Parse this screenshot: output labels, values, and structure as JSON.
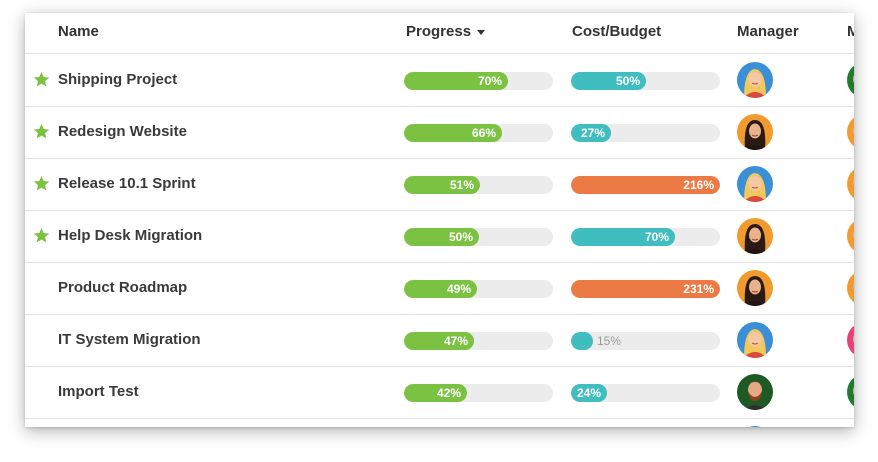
{
  "columns": {
    "name": "Name",
    "progress": "Progress",
    "cost": "Cost/Budget",
    "manager": "Manager",
    "next": "M"
  },
  "colors": {
    "star": "#7cc242",
    "progress": "#7cc242",
    "cost_normal": "#3fbdbf",
    "cost_over": "#ec7a45",
    "track": "#ececec"
  },
  "rows": [
    {
      "starred": true,
      "name": "Shipping Project",
      "progress": 70,
      "progress_label": "70%",
      "cost": 50,
      "cost_label": "50%",
      "cost_status": "normal",
      "manager_avatar": "blonde-woman",
      "next_avatar": "green"
    },
    {
      "starred": true,
      "name": "Redesign Website",
      "progress": 66,
      "progress_label": "66%",
      "cost": 27,
      "cost_label": "27%",
      "cost_status": "normal",
      "manager_avatar": "dark-hair-woman",
      "next_avatar": "orange"
    },
    {
      "starred": true,
      "name": "Release 10.1 Sprint",
      "progress": 51,
      "progress_label": "51%",
      "cost": 216,
      "cost_label": "216%",
      "cost_status": "over",
      "manager_avatar": "blonde-woman",
      "next_avatar": "orange"
    },
    {
      "starred": true,
      "name": "Help Desk Migration",
      "progress": 50,
      "progress_label": "50%",
      "cost": 70,
      "cost_label": "70%",
      "cost_status": "normal",
      "manager_avatar": "dark-hair-woman",
      "next_avatar": "orange"
    },
    {
      "starred": false,
      "name": "Product Roadmap",
      "progress": 49,
      "progress_label": "49%",
      "cost": 231,
      "cost_label": "231%",
      "cost_status": "over",
      "manager_avatar": "dark-hair-woman",
      "next_avatar": "orange"
    },
    {
      "starred": false,
      "name": "IT System Migration",
      "progress": 47,
      "progress_label": "47%",
      "cost": 15,
      "cost_label": "15%",
      "cost_status": "normal",
      "manager_avatar": "blonde-woman",
      "next_avatar": "pink"
    },
    {
      "starred": false,
      "name": "Import Test",
      "progress": 42,
      "progress_label": "42%",
      "cost": 24,
      "cost_label": "24%",
      "cost_status": "normal",
      "manager_avatar": "bearded-man",
      "next_avatar": "green"
    },
    {
      "starred": false,
      "name": "",
      "progress": null,
      "progress_label": "",
      "cost": null,
      "cost_label": "",
      "cost_status": "normal",
      "manager_avatar": "blonde-woman",
      "next_avatar": ""
    }
  ]
}
